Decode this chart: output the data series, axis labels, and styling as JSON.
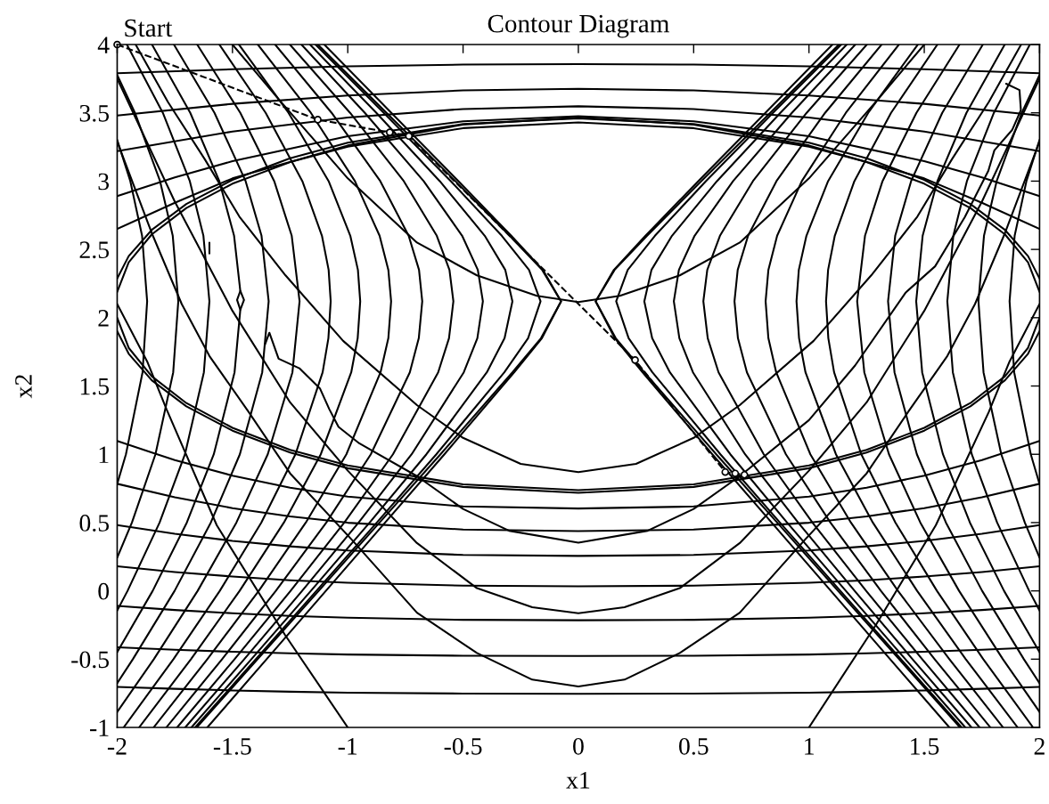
{
  "chart_data": {
    "type": "line",
    "title": "Contour Diagram",
    "xlabel": "x1",
    "ylabel": "x2",
    "xlim": [
      -2,
      2
    ],
    "ylim": [
      -1,
      4
    ],
    "xticks": [
      -2,
      -1.5,
      -1,
      -0.5,
      0,
      0.5,
      1,
      1.5,
      2
    ],
    "yticks": [
      -1,
      -0.5,
      0,
      0.5,
      1,
      1.5,
      2,
      2.5,
      3,
      3.5,
      4
    ],
    "line_style": "solid",
    "annotations": [
      {
        "text": "Start",
        "x": -2,
        "y": 4
      }
    ],
    "series": [
      {
        "color": "#000000",
        "x": [
          -1.14,
          -0.844,
          -0.553,
          -0.332,
          -0.214,
          -0.164,
          -0.218,
          -0.321,
          -0.616,
          -0.874,
          -1.136,
          -1.399,
          -1.662
        ],
        "values": [
          4,
          3.5,
          3,
          2.6,
          2.35,
          2.12,
          1.85,
          1.6,
          1,
          0.5,
          0,
          -0.5,
          -1
        ]
      },
      {
        "color": "#000000",
        "x": [
          -1.164,
          -0.876,
          -0.601,
          -0.406,
          -0.317,
          -0.286,
          -0.32,
          -0.397,
          -0.659,
          -0.905,
          -1.16,
          -1.418,
          -1.678
        ],
        "values": [
          4,
          3.5,
          3,
          2.6,
          2.35,
          2.12,
          1.85,
          1.6,
          1,
          0.5,
          0,
          -0.5,
          -1
        ]
      },
      {
        "color": "#000000",
        "x": [
          -1.201,
          -0.926,
          -0.671,
          -0.504,
          -0.436,
          -0.414,
          -0.438,
          -0.497,
          -0.723,
          -0.953,
          -1.198,
          -1.449,
          -1.705
        ],
        "values": [
          4,
          3.5,
          3,
          2.6,
          2.35,
          2.12,
          1.85,
          1.6,
          1,
          0.5,
          0,
          -0.5,
          -1
        ]
      },
      {
        "color": "#000000",
        "x": [
          -1.251,
          -0.99,
          -0.757,
          -0.614,
          -0.559,
          -0.542,
          -0.561,
          -0.608,
          -0.804,
          -1.015,
          -1.248,
          -1.491,
          -1.74
        ],
        "values": [
          4,
          3.5,
          3,
          2.6,
          2.35,
          2.12,
          1.85,
          1.6,
          1,
          0.5,
          0,
          -0.5,
          -1
        ]
      },
      {
        "color": "#000000",
        "x": [
          -1.315,
          -1.07,
          -0.859,
          -0.736,
          -0.691,
          -0.677,
          -0.692,
          -0.731,
          -0.9,
          -1.093,
          -1.312,
          -1.545,
          -1.787
        ],
        "values": [
          4,
          3.5,
          3,
          2.6,
          2.35,
          2.12,
          1.85,
          1.6,
          1,
          0.5,
          0,
          -0.5,
          -1
        ]
      },
      {
        "color": "#000000",
        "x": [
          -1.39,
          -1.16,
          -0.969,
          -0.862,
          -0.824,
          -0.812,
          -0.824,
          -0.858,
          -1.006,
          -1.182,
          -1.386,
          -1.609,
          -1.842
        ],
        "values": [
          4,
          3.5,
          3,
          2.6,
          2.35,
          2.12,
          1.85,
          1.6,
          1,
          0.5,
          0,
          -0.5,
          -1
        ]
      },
      {
        "color": "#000000",
        "x": [
          -1.472,
          -1.257,
          -1.083,
          -0.989,
          -0.956,
          -0.946,
          -0.957,
          -0.985,
          -1.117,
          -1.277,
          -1.469,
          -1.68,
          -1.905
        ],
        "values": [
          4,
          3.5,
          3,
          2.6,
          2.35,
          2.12,
          1.85,
          1.6,
          1,
          0.5,
          0,
          -0.5,
          -1
        ]
      },
      {
        "color": "#000000",
        "x": [
          -1.557,
          -1.356,
          -1.197,
          -1.112,
          -1.083,
          -1.074,
          -1.084,
          -1.109,
          -1.227,
          -1.375,
          -1.555,
          -1.756,
          -1.972
        ],
        "values": [
          4,
          3.5,
          3,
          2.6,
          2.35,
          2.12,
          1.85,
          1.6,
          1,
          0.5,
          0,
          -0.5,
          -1
        ]
      },
      {
        "color": "#000000",
        "x": [
          -1.653,
          -1.466,
          -1.319,
          -1.243,
          -1.209,
          -1.24,
          -1.347,
          -1.483,
          -1.651,
          -1.841,
          -2
        ],
        "values": [
          4,
          3.5,
          3,
          2.6,
          2.12,
          1.6,
          1,
          0.5,
          0,
          -0.5,
          -0.886
        ]
      },
      {
        "color": "#000000",
        "x": [
          -1.754,
          -1.578,
          -1.443,
          -1.374,
          -1.343,
          -1.371,
          -1.468,
          -1.594,
          -1.751,
          -1.932,
          -2
        ],
        "values": [
          4,
          3.5,
          3,
          2.6,
          2.12,
          1.6,
          1,
          0.5,
          0,
          -0.5,
          -0.676
        ]
      },
      {
        "color": "#000000",
        "x": [
          -1.849,
          -1.683,
          -1.557,
          -1.493,
          -1.466,
          -1.48,
          -1.466,
          -1.491,
          -1.581,
          -1.698,
          -1.846,
          -2
        ],
        "values": [
          4,
          3.5,
          3,
          2.6,
          2.196,
          2.13,
          2.058,
          1.6,
          1,
          0.5,
          0,
          -0.449
        ]
      },
      {
        "color": "#000000",
        "x": [
          -1.958,
          -1.802,
          -1.685,
          -1.626,
          -1.6,
          -1.624,
          -1.706,
          -1.816,
          -1.955,
          -2,
          null,
          -1.6,
          -1.6
        ],
        "values": [
          4,
          3.5,
          3,
          2.6,
          2.12,
          1.6,
          1,
          0.5,
          0,
          -0.144,
          null,
          2.55,
          2.47
        ]
      },
      {
        "color": "#000000",
        "x": [
          -2,
          -1.923,
          -1.814,
          -1.759,
          -1.735,
          -1.757,
          -1.834,
          -1.936,
          -2
        ],
        "values": [
          3.778,
          3.5,
          3,
          2.6,
          2.12,
          1.6,
          1,
          0.5,
          0.243
        ]
      },
      {
        "color": "#000000",
        "x": [
          -2,
          -1.943,
          -1.892,
          -1.87,
          -1.89,
          -1.962,
          -2
        ],
        "values": [
          3.302,
          3,
          2.6,
          2.12,
          1.6,
          1,
          0.782
        ]
      },
      {
        "color": "#000000",
        "x": [
          1.14,
          0.844,
          0.553,
          0.332,
          0.214,
          0.164,
          0.218,
          0.321,
          0.616,
          0.874,
          1.136,
          1.399,
          1.662
        ],
        "values": [
          4,
          3.5,
          3,
          2.6,
          2.35,
          2.12,
          1.85,
          1.6,
          1,
          0.5,
          0,
          -0.5,
          -1
        ]
      },
      {
        "color": "#000000",
        "x": [
          1.164,
          0.876,
          0.601,
          0.406,
          0.317,
          0.286,
          0.32,
          0.397,
          0.659,
          0.905,
          1.16,
          1.418,
          1.678
        ],
        "values": [
          4,
          3.5,
          3,
          2.6,
          2.35,
          2.12,
          1.85,
          1.6,
          1,
          0.5,
          0,
          -0.5,
          -1
        ]
      },
      {
        "color": "#000000",
        "x": [
          1.201,
          0.926,
          0.671,
          0.504,
          0.436,
          0.414,
          0.438,
          0.497,
          0.723,
          0.953,
          1.198,
          1.449,
          1.705
        ],
        "values": [
          4,
          3.5,
          3,
          2.6,
          2.35,
          2.12,
          1.85,
          1.6,
          1,
          0.5,
          0,
          -0.5,
          -1
        ]
      },
      {
        "color": "#000000",
        "x": [
          1.251,
          0.99,
          0.757,
          0.614,
          0.559,
          0.542,
          0.561,
          0.608,
          0.804,
          1.015,
          1.248,
          1.491,
          1.74
        ],
        "values": [
          4,
          3.5,
          3,
          2.6,
          2.35,
          2.12,
          1.85,
          1.6,
          1,
          0.5,
          0,
          -0.5,
          -1
        ]
      },
      {
        "color": "#000000",
        "x": [
          1.315,
          1.07,
          0.859,
          0.736,
          0.691,
          0.677,
          0.692,
          0.731,
          0.9,
          1.093,
          1.312,
          1.545,
          1.787
        ],
        "values": [
          4,
          3.5,
          3,
          2.6,
          2.35,
          2.12,
          1.85,
          1.6,
          1,
          0.5,
          0,
          -0.5,
          -1
        ]
      },
      {
        "color": "#000000",
        "x": [
          1.39,
          1.16,
          0.969,
          0.862,
          0.824,
          0.812,
          0.824,
          0.858,
          1.006,
          1.182,
          1.386,
          1.609,
          1.842
        ],
        "values": [
          4,
          3.5,
          3,
          2.6,
          2.35,
          2.12,
          1.85,
          1.6,
          1,
          0.5,
          0,
          -0.5,
          -1
        ]
      },
      {
        "color": "#000000",
        "x": [
          1.472,
          1.257,
          1.083,
          0.989,
          0.956,
          0.946,
          0.957,
          0.985,
          1.117,
          1.277,
          1.469,
          1.68,
          1.905
        ],
        "values": [
          4,
          3.5,
          3,
          2.6,
          2.35,
          2.12,
          1.85,
          1.6,
          1,
          0.5,
          0,
          -0.5,
          -1
        ]
      },
      {
        "color": "#000000",
        "x": [
          1.557,
          1.356,
          1.197,
          1.112,
          1.083,
          1.074,
          1.084,
          1.109,
          1.227,
          1.375,
          1.555,
          1.756,
          1.972
        ],
        "values": [
          4,
          3.5,
          3,
          2.6,
          2.35,
          2.12,
          1.85,
          1.6,
          1,
          0.5,
          0,
          -0.5,
          -1
        ]
      },
      {
        "color": "#000000",
        "x": [
          1.653,
          1.466,
          1.319,
          1.243,
          1.209,
          1.24,
          1.347,
          1.483,
          1.651,
          1.841,
          2
        ],
        "values": [
          4,
          3.5,
          3,
          2.6,
          2.12,
          1.6,
          1,
          0.5,
          0,
          -0.5,
          -0.886
        ]
      },
      {
        "color": "#000000",
        "x": [
          1.754,
          1.578,
          1.443,
          1.374,
          1.343,
          1.371,
          1.468,
          1.594,
          1.751,
          1.932,
          2
        ],
        "values": [
          4,
          3.5,
          3,
          2.6,
          2.12,
          1.6,
          1,
          0.5,
          0,
          -0.5,
          -0.676
        ]
      },
      {
        "color": "#000000",
        "x": [
          1.849,
          1.683,
          1.557,
          1.493,
          1.465,
          1.491,
          1.581,
          1.698,
          1.846,
          2
        ],
        "values": [
          4,
          3.5,
          3,
          2.6,
          2.12,
          1.6,
          1,
          0.5,
          0,
          -0.449
        ]
      },
      {
        "color": "#000000",
        "x": [
          1.958,
          1.802,
          1.685,
          1.626,
          1.6,
          1.624,
          1.706,
          1.816,
          1.955,
          2
        ],
        "values": [
          4,
          3.5,
          3,
          2.6,
          2.12,
          1.6,
          1,
          0.5,
          0,
          -0.144
        ]
      },
      {
        "color": "#000000",
        "x": [
          2,
          1.923,
          1.814,
          1.759,
          1.735,
          1.757,
          1.834,
          1.936,
          2
        ],
        "values": [
          3.778,
          3.5,
          3,
          2.6,
          2.12,
          1.6,
          1,
          0.5,
          0.243
        ]
      },
      {
        "color": "#000000",
        "x": [
          2,
          1.943,
          1.892,
          1.87,
          1.89,
          1.962,
          2
        ],
        "values": [
          3.302,
          3,
          2.6,
          2.12,
          1.6,
          1,
          0.782
        ]
      },
      {
        "color": "#000000",
        "x": [
          -1.13,
          -0.832,
          -0.533,
          -0.298,
          -0.157,
          -0.075,
          -0.162,
          -0.286,
          -0.598,
          -0.862,
          -1.126,
          -1.391,
          -1.655
        ],
        "values": [
          4,
          3.5,
          3,
          2.6,
          2.35,
          2.12,
          1.85,
          1.6,
          1,
          0.5,
          0,
          -0.5,
          -1
        ]
      },
      {
        "color": "#000000",
        "x": [
          -1.102,
          -0.811,
          -0.52,
          -0.291,
          -0.154,
          -0.075,
          -0.158,
          -0.278,
          -0.581,
          -0.838,
          -1.095,
          -1.352,
          -1.609
        ],
        "values": [
          4,
          3.5,
          3,
          2.6,
          2.35,
          2.12,
          1.85,
          1.6,
          1,
          0.5,
          0,
          -0.5,
          -1
        ]
      },
      {
        "color": "#000000",
        "x": [
          1.13,
          0.832,
          0.533,
          0.298,
          0.157,
          0.075,
          0.162,
          0.286,
          0.598,
          0.862,
          1.126,
          1.391,
          1.655
        ],
        "values": [
          4,
          3.5,
          3,
          2.6,
          2.35,
          2.12,
          1.85,
          1.6,
          1,
          0.5,
          0,
          -0.5,
          -1
        ]
      },
      {
        "color": "#000000",
        "x": [
          1.102,
          0.811,
          0.52,
          0.291,
          0.154,
          0.075,
          0.158,
          0.278,
          0.581,
          0.838,
          1.095,
          1.352,
          1.609
        ],
        "values": [
          4,
          3.5,
          3,
          2.6,
          2.35,
          2.12,
          1.85,
          1.6,
          1,
          0.5,
          0,
          -0.5,
          -1
        ]
      },
      {
        "color": "#000000",
        "x": [
          -1.5,
          -1.3,
          -1.0,
          -0.7,
          -0.44,
          -0.18,
          0,
          0.18,
          0.44,
          0.7,
          1.0,
          1.3,
          1.5
        ],
        "values": [
          4,
          3.6,
          3.02,
          2.55,
          2.31,
          2.16,
          2.115,
          2.16,
          2.31,
          2.55,
          3.02,
          3.6,
          4
        ]
      },
      {
        "color": "#000000",
        "x": [
          -1.92,
          -1.78,
          -1.62,
          -1.47,
          -1.27,
          -1.02,
          -0.7,
          -0.5,
          -0.25,
          0,
          0.25,
          0.5,
          0.7,
          1.02,
          1.27,
          1.47,
          1.62,
          1.78,
          1.92
        ],
        "values": [
          4,
          3.58,
          3.16,
          2.74,
          2.31,
          1.83,
          1.36,
          1.12,
          0.93,
          0.87,
          0.93,
          1.12,
          1.36,
          1.83,
          2.31,
          2.74,
          3.16,
          3.58,
          4
        ]
      },
      {
        "color": "#000000",
        "x": [
          -1.36,
          -1.34,
          -1.3,
          -1.21,
          -1.12,
          -1.08,
          -1.04,
          -0.95,
          -0.7,
          -0.5,
          -0.3,
          0,
          0.3,
          0.5,
          0.7,
          1.0,
          1.2,
          1.42,
          1.547,
          1.676,
          1.778,
          1.804,
          1.881,
          1.919,
          1.913,
          1.855
        ],
        "values": [
          1.8,
          1.89,
          1.7,
          1.63,
          1.48,
          1.33,
          1.2,
          1.08,
          0.84,
          0.6,
          0.44,
          0.353,
          0.44,
          0.6,
          0.84,
          1.25,
          1.65,
          2.185,
          2.376,
          2.737,
          3.076,
          3.225,
          3.374,
          3.52,
          3.667,
          3.713
        ]
      },
      {
        "color": "#000000",
        "x": [
          -2,
          -1.75,
          -1.5,
          -1.25,
          -1.0,
          -0.7,
          -0.44,
          -0.2,
          0,
          0.2,
          0.44,
          0.7,
          1.0,
          1.25,
          1.5,
          1.75,
          2
        ],
        "values": [
          3.75,
          2.85,
          2.05,
          1.38,
          0.88,
          0.35,
          0.02,
          -0.12,
          -0.164,
          -0.12,
          0.02,
          0.35,
          0.88,
          1.38,
          2.05,
          2.85,
          3.75
        ]
      },
      {
        "color": "#000000",
        "x": [
          -2,
          -1.85,
          -1.72,
          -1.6,
          -1.43,
          -1.25,
          -0.98,
          -0.7,
          -0.44,
          -0.2,
          0,
          0.2,
          0.44,
          0.7,
          0.98,
          1.25,
          1.43,
          1.6,
          1.72,
          1.85,
          2
        ],
        "values": [
          3.29,
          2.62,
          2.1,
          1.72,
          1.31,
          0.86,
          0.37,
          -0.16,
          -0.455,
          -0.65,
          -0.7,
          -0.65,
          -0.455,
          -0.16,
          0.37,
          0.86,
          1.31,
          1.72,
          2.1,
          2.62,
          3.29
        ]
      },
      {
        "color": "#000000",
        "x": [
          -2,
          -1.87,
          -1.786,
          -1.568,
          -1.273,
          -1.0
        ],
        "values": [
          2.1,
          1.68,
          1.33,
          0.48,
          -0.32,
          -1
        ]
      },
      {
        "color": "#000000",
        "x": [
          2,
          1.87,
          1.78,
          1.55,
          1.29,
          1.0
        ],
        "values": [
          2.1,
          1.68,
          1.31,
          0.48,
          -0.25,
          -1
        ]
      },
      {
        "color": "#000000",
        "x": [
          -2,
          -1.75,
          -1.5,
          -1.25,
          -1,
          -0.5,
          0,
          0.5,
          1,
          1.25,
          1.5,
          1.75,
          2
        ],
        "values": [
          1.097,
          0.957,
          0.844,
          0.756,
          0.69,
          0.618,
          0.603,
          0.618,
          0.69,
          0.756,
          0.844,
          0.957,
          1.097
        ]
      },
      {
        "color": "#000000",
        "x": [
          -2,
          -1.75,
          -1.5,
          -1.25,
          -1,
          -0.5,
          0,
          0.5,
          1,
          1.25,
          1.5,
          1.75,
          2
        ],
        "values": [
          0.784,
          0.686,
          0.606,
          0.545,
          0.499,
          0.449,
          0.438,
          0.449,
          0.499,
          0.545,
          0.606,
          0.686,
          0.784
        ]
      },
      {
        "color": "#000000",
        "x": [
          -2,
          -1.75,
          -1.5,
          -1.25,
          -1,
          -0.5,
          0,
          0.5,
          1,
          1.25,
          1.5,
          1.75,
          2
        ],
        "values": [
          0.482,
          0.418,
          0.366,
          0.326,
          0.296,
          0.263,
          0.256,
          0.263,
          0.296,
          0.326,
          0.366,
          0.418,
          0.482
        ]
      },
      {
        "color": "#000000",
        "x": [
          -2,
          -1.75,
          -1.5,
          -1.25,
          -1,
          -0.5,
          0,
          0.5,
          1,
          1.25,
          1.5,
          1.75,
          2
        ],
        "values": [
          0.18,
          0.138,
          0.105,
          0.078,
          0.059,
          0.038,
          0.033,
          0.038,
          0.059,
          0.078,
          0.105,
          0.138,
          0.18
        ]
      },
      {
        "color": "#000000",
        "x": [
          -2,
          -1.75,
          -1.5,
          -1.25,
          -1,
          -0.5,
          0,
          0.5,
          1,
          1.25,
          1.5,
          1.75,
          2
        ],
        "values": [
          -0.11,
          -0.14,
          -0.164,
          -0.183,
          -0.196,
          -0.212,
          -0.215,
          -0.212,
          -0.196,
          -0.183,
          -0.164,
          -0.14,
          -0.11
        ]
      },
      {
        "color": "#000000",
        "x": [
          -2,
          -1.75,
          -1.5,
          -1.25,
          -1,
          -0.5,
          0,
          0.5,
          1,
          1.25,
          1.5,
          1.75,
          2
        ],
        "values": [
          -0.413,
          -0.431,
          -0.446,
          -0.457,
          -0.466,
          -0.475,
          -0.477,
          -0.475,
          -0.466,
          -0.457,
          -0.446,
          -0.431,
          -0.413
        ]
      },
      {
        "color": "#000000",
        "x": [
          -2,
          -1.75,
          -1.5,
          -1.25,
          -1,
          -0.5,
          0,
          0.5,
          1,
          1.25,
          1.5,
          1.75,
          2
        ],
        "values": [
          -0.703,
          -0.717,
          -0.729,
          -0.738,
          -0.745,
          -0.752,
          -0.754,
          -0.752,
          -0.745,
          -0.738,
          -0.729,
          -0.717,
          -0.703
        ]
      },
      {
        "color": "#000000",
        "x": [
          -2,
          -1.5,
          -1,
          -0.5,
          0,
          0.5,
          1,
          1.5,
          2
        ],
        "values": [
          3.79,
          3.819,
          3.84,
          3.853,
          3.857,
          3.853,
          3.84,
          3.819,
          3.79
        ]
      },
      {
        "color": "#000000",
        "x": [
          -2,
          -1.5,
          -1,
          -0.5,
          0,
          0.5,
          1,
          1.5,
          2
        ],
        "values": [
          3.48,
          3.566,
          3.627,
          3.664,
          3.676,
          3.664,
          3.627,
          3.566,
          3.48
        ]
      },
      {
        "color": "#000000",
        "x": [
          -2,
          -1.5,
          -1,
          -0.5,
          0,
          0.5,
          1,
          1.5,
          2
        ],
        "values": [
          3.22,
          3.363,
          3.466,
          3.528,
          3.548,
          3.528,
          3.466,
          3.363,
          3.22
        ]
      },
      {
        "color": "#000000",
        "x": [
          -2,
          -1.75,
          -1.5,
          -1,
          -0.5,
          0,
          0.5,
          1,
          1.5,
          1.75,
          2
        ],
        "values": [
          2.89,
          3.027,
          3.146,
          3.329,
          3.438,
          3.475,
          3.438,
          3.329,
          3.146,
          3.027,
          2.89
        ]
      },
      {
        "color": "#000000",
        "x": [
          -2,
          -1.75,
          -1.5,
          -1,
          -0.5,
          0,
          0.5,
          1,
          1.5,
          1.75,
          2
        ],
        "values": [
          2.65,
          2.841,
          3.02,
          3.261,
          3.414,
          3.465,
          3.414,
          3.261,
          3.02,
          2.841,
          2.65
        ]
      },
      {
        "color": "#000000",
        "x": [
          -2,
          -1.95,
          -1.85,
          -1.7,
          -1.5,
          -1.25,
          -1,
          -0.5,
          0,
          0.5,
          1,
          1.25,
          1.5,
          1.7,
          1.85,
          1.95,
          2
        ],
        "values": [
          2.287,
          2.451,
          2.643,
          2.832,
          3.009,
          3.167,
          3.281,
          3.418,
          3.46,
          3.418,
          3.281,
          3.167,
          3.009,
          2.832,
          2.643,
          2.451,
          2.287
        ]
      },
      {
        "color": "#000000",
        "x": [
          2,
          1.95,
          1.85,
          1.7,
          1.5,
          1.25,
          1,
          0.5,
          0,
          -0.5,
          -1,
          -1.25,
          -1.5,
          -1.7,
          -1.85,
          -1.95,
          -2
        ],
        "values": [
          1.902,
          1.736,
          1.542,
          1.351,
          1.173,
          1.013,
          0.898,
          0.761,
          0.718,
          0.761,
          0.898,
          1.013,
          1.173,
          1.351,
          1.542,
          1.736,
          1.902
        ]
      },
      {
        "color": "#000000",
        "x": [
          -2,
          -1.95,
          -1.85,
          -1.7,
          -1.5,
          -1.25,
          -1,
          -0.5,
          0,
          0.5,
          1,
          1.25,
          1.5,
          1.7,
          1.85,
          1.95,
          2
        ],
        "values": [
          2.189,
          2.406,
          2.61,
          2.803,
          2.981,
          3.139,
          3.252,
          3.388,
          3.43,
          3.388,
          3.252,
          3.139,
          2.981,
          2.803,
          2.61,
          2.406,
          2.189
        ]
      },
      {
        "color": "#000000",
        "x": [
          2,
          1.95,
          1.85,
          1.7,
          1.5,
          1.25,
          1,
          0.5,
          0,
          -0.5,
          -1,
          -1.25,
          -1.5,
          -1.7,
          -1.85,
          -1.95,
          -2
        ],
        "values": [
          1.999,
          1.779,
          1.571,
          1.375,
          1.194,
          1.033,
          0.918,
          0.78,
          0.737,
          0.78,
          0.918,
          1.033,
          1.194,
          1.375,
          1.571,
          1.779,
          1.999
        ]
      },
      {
        "color": "#000000",
        "x": [
          -2,
          -1.13,
          -0.818,
          -0.735,
          0.246,
          0.637,
          0.68,
          0.72
        ],
        "values": [
          4,
          3.45,
          3.357,
          3.33,
          1.69,
          0.87,
          0.86,
          0.85
        ],
        "line_style": "dashed",
        "marker": "circle"
      },
      {
        "color": "#000000",
        "x": [
          -1.466,
          -1.45,
          -1.466
        ],
        "values": [
          2.196,
          2.13,
          2.058
        ]
      }
    ]
  }
}
